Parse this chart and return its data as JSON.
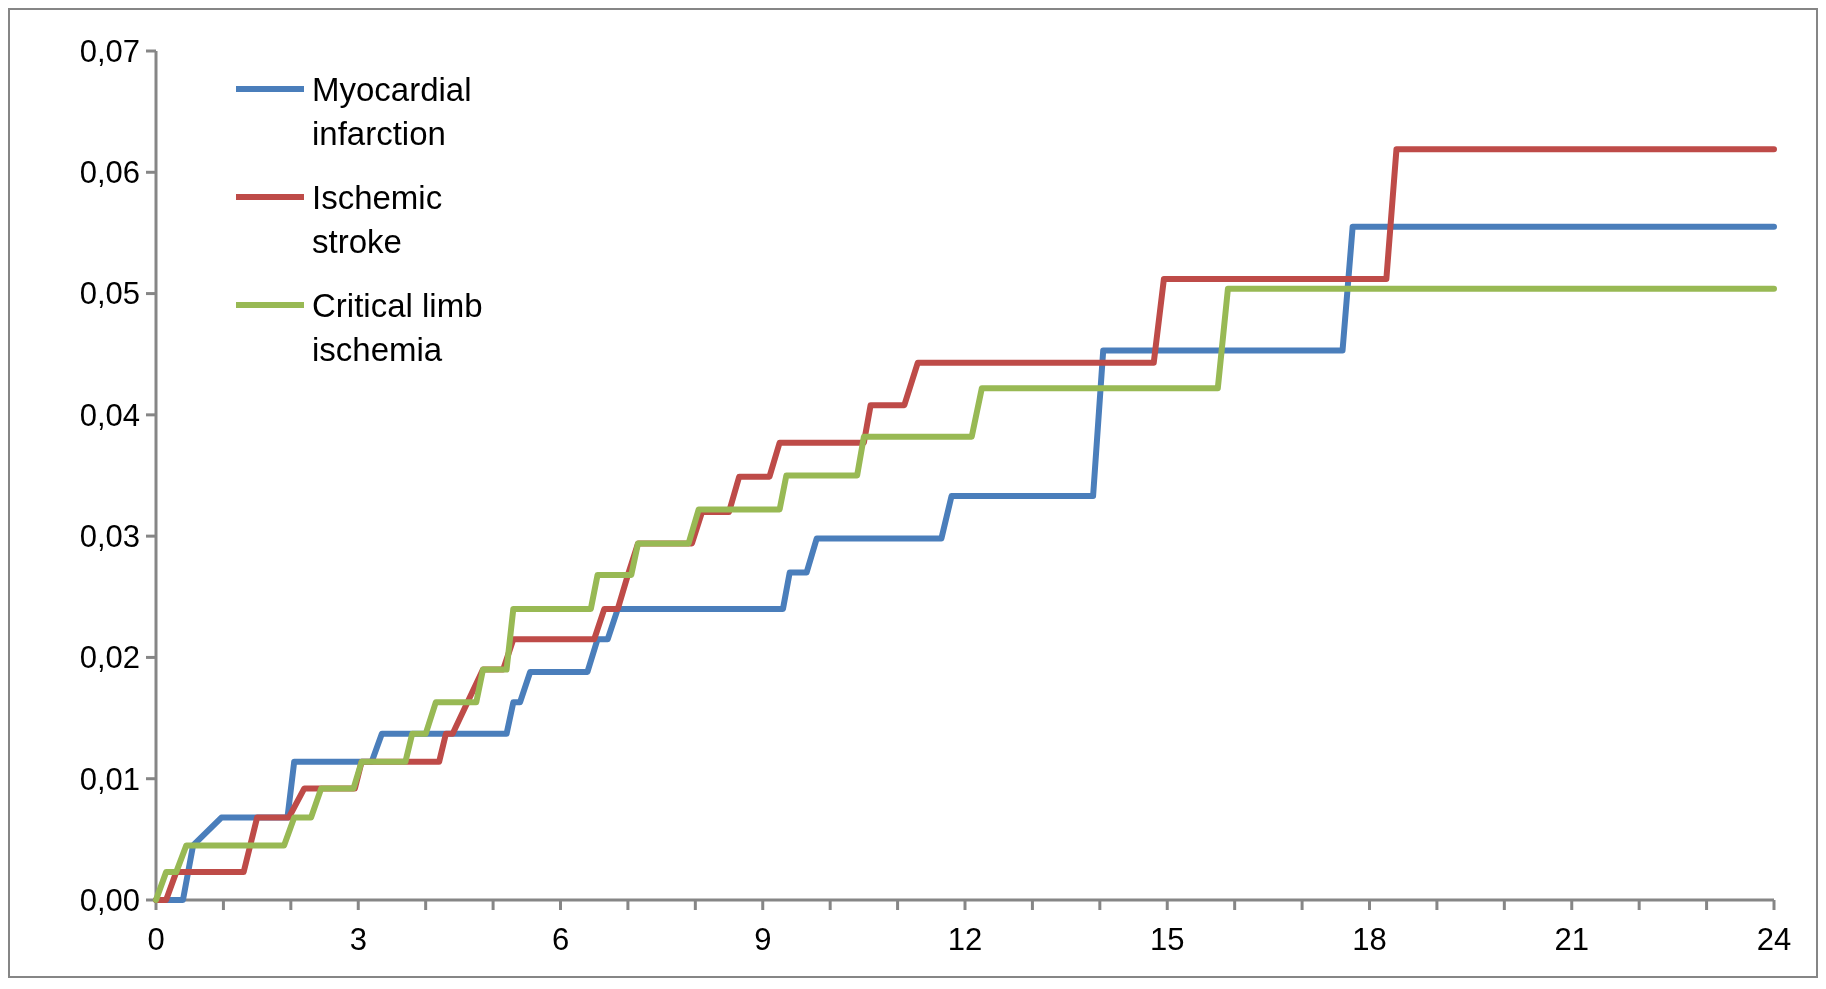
{
  "chart_data": {
    "type": "line",
    "marker": "none",
    "line_style": "solid",
    "legend": "top left",
    "grid": false,
    "xlim": [
      0,
      24
    ],
    "ylim": [
      0,
      0.07
    ],
    "xticks": [
      0,
      {
        "value": 1,
        "label": null
      },
      {
        "value": 2,
        "label": null
      },
      3,
      {
        "value": 4,
        "label": null
      },
      {
        "value": 5,
        "label": null
      },
      6,
      {
        "value": 7,
        "label": null
      },
      {
        "value": 8,
        "label": null
      },
      9,
      {
        "value": 10,
        "label": null
      },
      {
        "value": 11,
        "label": null
      },
      12,
      {
        "value": 13,
        "label": null
      },
      {
        "value": 14,
        "label": null
      },
      15,
      {
        "value": 16,
        "label": null
      },
      {
        "value": 17,
        "label": null
      },
      18,
      {
        "value": 19,
        "label": null
      },
      {
        "value": 20,
        "label": null
      },
      21,
      {
        "value": 22,
        "label": null
      },
      {
        "value": 23,
        "label": null
      },
      24
    ],
    "yticks": [
      {
        "value": 0,
        "label": "0,00"
      },
      {
        "value": 0.01,
        "label": "0,01"
      },
      {
        "value": 0.02,
        "label": "0,02"
      },
      {
        "value": 0.03,
        "label": "0,03"
      },
      {
        "value": 0.04,
        "label": "0,04"
      },
      {
        "value": 0.05,
        "label": "0,05"
      },
      {
        "value": 0.06,
        "label": "0,06"
      },
      {
        "value": 0.07,
        "label": "0,07"
      }
    ],
    "series": [
      {
        "name": "Myocardial infarction",
        "color": "#4a7ebb",
        "x": [
          0,
          0.4,
          0.55,
          0.97,
          1.95,
          2.05,
          3.2,
          3.35,
          5.2,
          5.3,
          5.4,
          5.55,
          6.4,
          6.55,
          6.7,
          6.85,
          9.3,
          9.4,
          9.65,
          9.8,
          11.65,
          11.8,
          13.9,
          14.05,
          17.6,
          17.75,
          24
        ],
        "values": [
          0,
          0,
          0.0045,
          0.0068,
          0.0068,
          0.0114,
          0.0114,
          0.0137,
          0.0137,
          0.0163,
          0.0163,
          0.0188,
          0.0188,
          0.0215,
          0.0215,
          0.024,
          0.024,
          0.027,
          0.027,
          0.0298,
          0.0298,
          0.0333,
          0.0333,
          0.0453,
          0.0453,
          0.0555,
          0.0555
        ]
      },
      {
        "name": "Ischemic stroke",
        "color": "#be4b48",
        "x": [
          0,
          0.15,
          0.3,
          1.3,
          1.5,
          1.97,
          2.2,
          2.95,
          3.05,
          4.2,
          4.3,
          4.4,
          4.85,
          5.15,
          5.3,
          6.5,
          6.65,
          6.85,
          7.0,
          7.15,
          7.95,
          8.1,
          8.5,
          8.65,
          9.1,
          9.25,
          10.5,
          10.6,
          11.1,
          11.3,
          14.8,
          14.95,
          18.25,
          18.4,
          24
        ],
        "values": [
          0,
          0,
          0.0023,
          0.0023,
          0.0068,
          0.0068,
          0.0092,
          0.0092,
          0.0114,
          0.0114,
          0.0137,
          0.0137,
          0.019,
          0.019,
          0.0215,
          0.0215,
          0.024,
          0.024,
          0.0268,
          0.0294,
          0.0294,
          0.032,
          0.032,
          0.0349,
          0.0349,
          0.0377,
          0.0377,
          0.0408,
          0.0408,
          0.0443,
          0.0443,
          0.0512,
          0.0512,
          0.0619,
          0.0619
        ]
      },
      {
        "name": "Critical limb ischemia",
        "color": "#98b954",
        "x": [
          0,
          0.15,
          0.3,
          0.45,
          1.9,
          2.05,
          2.3,
          2.45,
          2.93,
          3.05,
          3.7,
          3.8,
          4.0,
          4.15,
          4.75,
          4.85,
          5.2,
          5.3,
          6.45,
          6.55,
          7.05,
          7.15,
          7.9,
          8.05,
          9.25,
          9.35,
          10.4,
          10.5,
          12.1,
          12.25,
          15.75,
          15.9,
          24
        ],
        "values": [
          0,
          0.0023,
          0.0023,
          0.0045,
          0.0045,
          0.0068,
          0.0068,
          0.0092,
          0.0092,
          0.0114,
          0.0114,
          0.0137,
          0.0137,
          0.0163,
          0.0163,
          0.019,
          0.019,
          0.024,
          0.024,
          0.0268,
          0.0268,
          0.0294,
          0.0294,
          0.0322,
          0.0322,
          0.035,
          0.035,
          0.0382,
          0.0382,
          0.0422,
          0.0422,
          0.0504,
          0.0504
        ]
      }
    ]
  }
}
